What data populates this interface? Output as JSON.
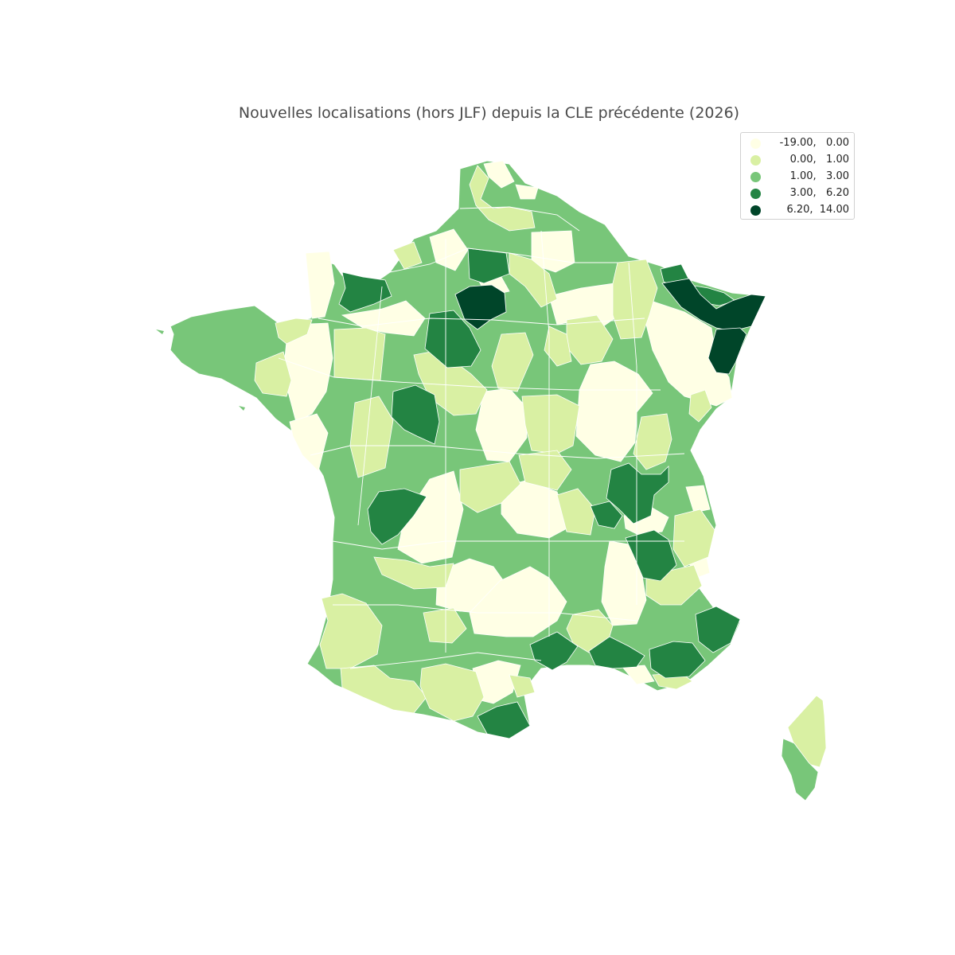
{
  "title": "Nouvelles localisations (hors JLF) depuis la CLE précédente (2026)",
  "legend": {
    "items": [
      {
        "label": "-19.00,   0.00",
        "color": "#ffffe5"
      },
      {
        "label": "0.00,   1.00",
        "color": "#d9f0a3"
      },
      {
        "label": "1.00,   3.00",
        "color": "#78c679"
      },
      {
        "label": "3.00,   6.20",
        "color": "#238443"
      },
      {
        "label": "6.20,  14.00",
        "color": "#004529"
      }
    ]
  },
  "map": {
    "type": "choropleth",
    "region": "France (departments)",
    "classes": [
      "-19.00, 0.00",
      "0.00, 1.00",
      "1.00, 3.00",
      "3.00, 6.20",
      "6.20, 14.00"
    ]
  }
}
